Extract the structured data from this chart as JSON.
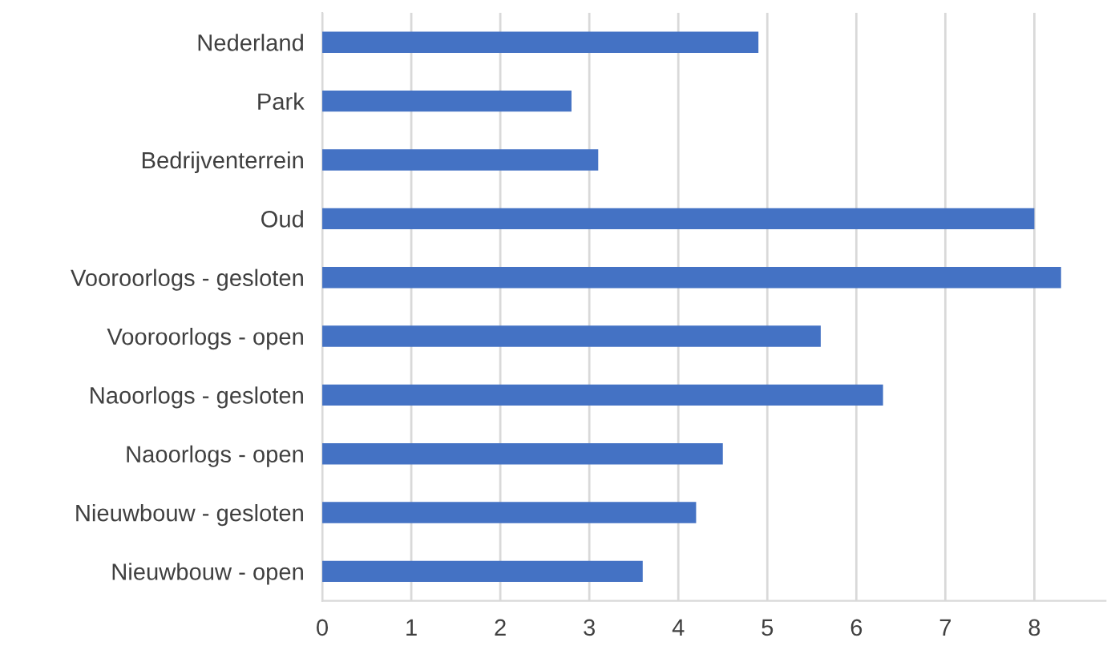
{
  "chart_data": {
    "type": "bar",
    "orientation": "horizontal",
    "categories": [
      "Nederland",
      "Park",
      "Bedrijventerrein",
      "Oud",
      "Vooroorlogs - gesloten",
      "Vooroorlogs - open",
      "Naoorlogs - gesloten",
      "Naoorlogs - open",
      "Nieuwbouw - gesloten",
      "Nieuwbouw - open"
    ],
    "values": [
      4.9,
      2.8,
      3.1,
      8.0,
      8.3,
      5.6,
      6.3,
      4.5,
      4.2,
      3.6
    ],
    "color": "#4472c4",
    "xlim": [
      0,
      8.8
    ],
    "xticks": [
      0,
      1,
      2,
      3,
      4,
      5,
      6,
      7,
      8
    ],
    "grid": "x"
  }
}
